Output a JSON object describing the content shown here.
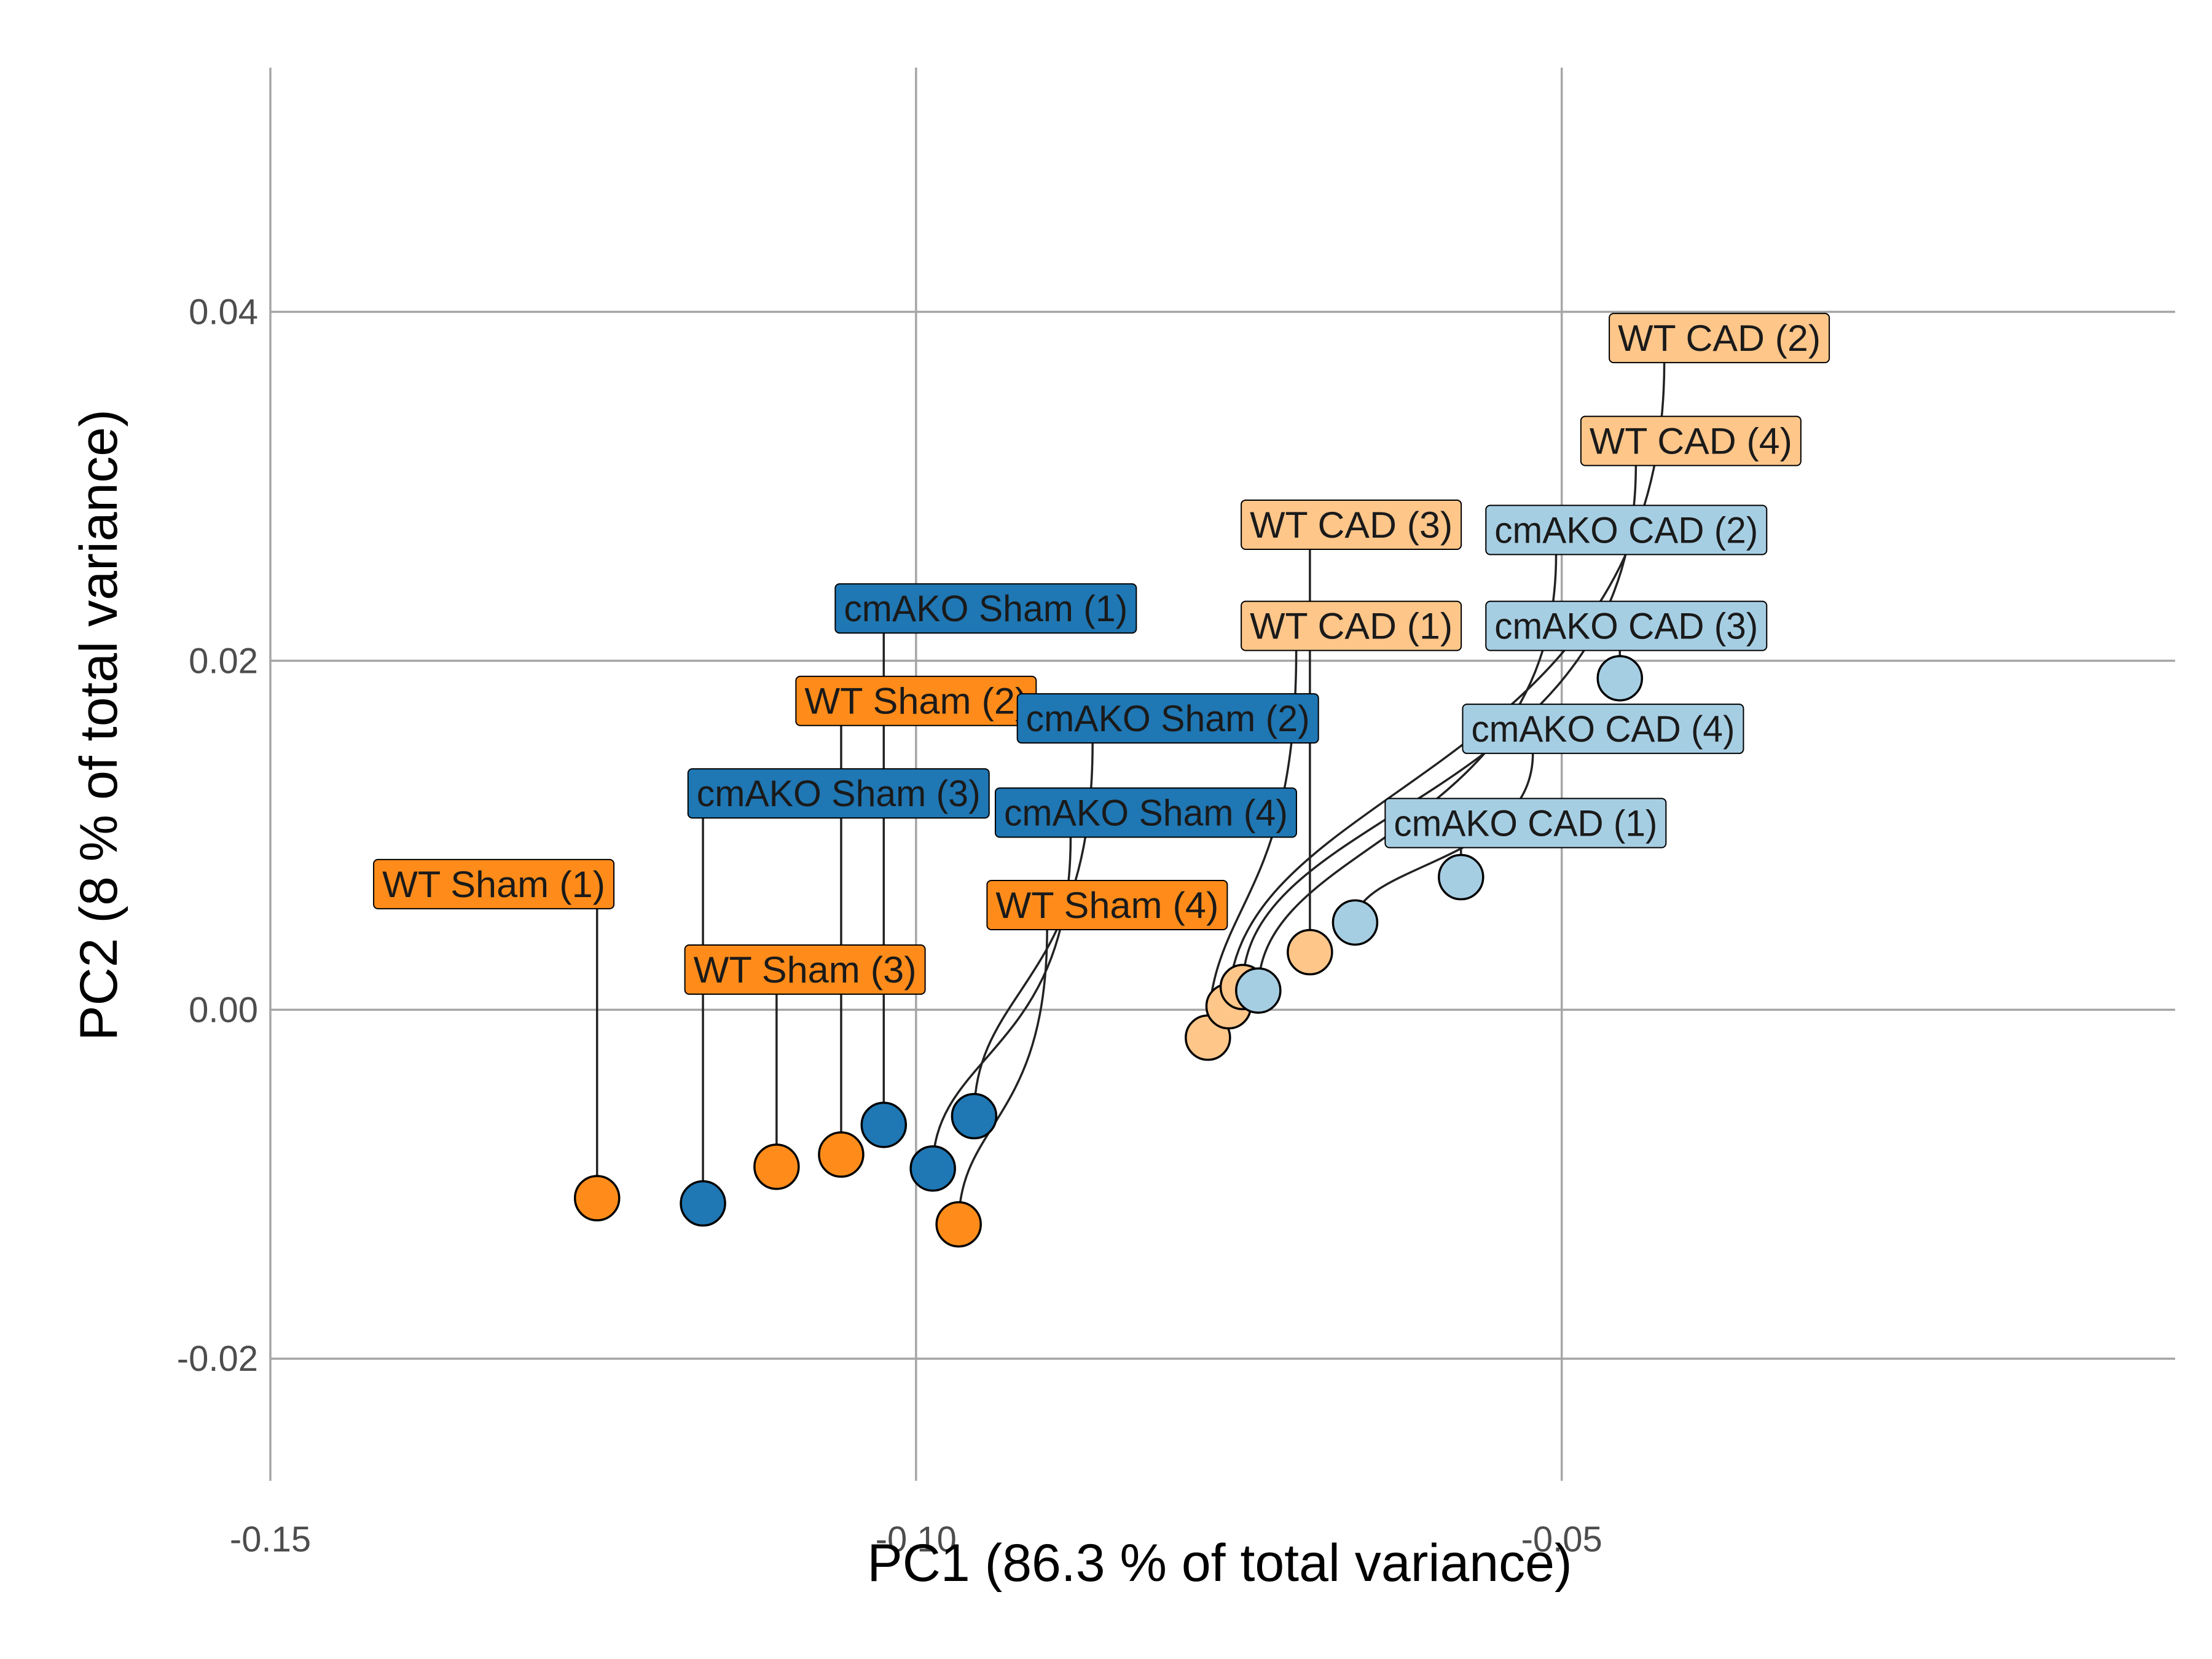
{
  "chart_data": {
    "type": "scatter",
    "xlabel": "PC1 (86.3 % of total variance)",
    "ylabel": "PC2 (8 % of total variance)",
    "xlim": [
      -0.15,
      -0.0025
    ],
    "ylim": [
      -0.027,
      0.054
    ],
    "x_ticks": [
      -0.15,
      -0.1,
      -0.05
    ],
    "x_tick_labels": [
      "-0.15",
      "-0.10",
      "-0.05"
    ],
    "y_ticks": [
      -0.02,
      0.0,
      0.02,
      0.04
    ],
    "y_tick_labels": [
      "-0.02",
      "0.00",
      "0.02",
      "0.04"
    ],
    "grid": true,
    "legend": "none",
    "colors": {
      "WT Sham": "#ff8c1a",
      "cmAKO Sham": "#1f77b4",
      "WT CAD": "#ffc68a",
      "cmAKO CAD": "#a6cee3"
    },
    "points": [
      {
        "label": "WT Sham (1)",
        "group": "WT Sham",
        "x": -0.1247,
        "y": -0.0108,
        "label_x": -0.1327,
        "label_y": 0.0072
      },
      {
        "label": "WT Sham (2)",
        "group": "WT Sham",
        "x": -0.1058,
        "y": -0.0083,
        "label_x": -0.1,
        "label_y": 0.0177
      },
      {
        "label": "WT Sham (3)",
        "group": "WT Sham",
        "x": -0.1108,
        "y": -0.009,
        "label_x": -0.1086,
        "label_y": 0.0023
      },
      {
        "label": "WT Sham (4)",
        "group": "WT Sham",
        "x": -0.0967,
        "y": -0.0123,
        "label_x": -0.0852,
        "label_y": 0.006
      },
      {
        "label": "cmAKO Sham (1)",
        "group": "cmAKO Sham",
        "x": -0.1025,
        "y": -0.0066,
        "label_x": -0.0946,
        "label_y": 0.023
      },
      {
        "label": "cmAKO Sham (2)",
        "group": "cmAKO Sham",
        "x": -0.0955,
        "y": -0.0061,
        "label_x": -0.0805,
        "label_y": 0.0167
      },
      {
        "label": "cmAKO Sham (3)",
        "group": "cmAKO Sham",
        "x": -0.1165,
        "y": -0.0111,
        "label_x": -0.106,
        "label_y": 0.0124
      },
      {
        "label": "cmAKO Sham (4)",
        "group": "cmAKO Sham",
        "x": -0.0987,
        "y": -0.0091,
        "label_x": -0.0822,
        "label_y": 0.0113
      },
      {
        "label": "WT CAD (1)",
        "group": "WT CAD",
        "x": -0.0774,
        "y": -0.0016,
        "label_x": -0.0663,
        "label_y": 0.022
      },
      {
        "label": "WT CAD (2)",
        "group": "WT CAD",
        "x": -0.0758,
        "y": 0.0002,
        "label_x": -0.0378,
        "label_y": 0.0385
      },
      {
        "label": "WT CAD (3)",
        "group": "WT CAD",
        "x": -0.0695,
        "y": 0.0033,
        "label_x": -0.0663,
        "label_y": 0.0278
      },
      {
        "label": "WT CAD (4)",
        "group": "WT CAD",
        "x": -0.0747,
        "y": 0.0013,
        "label_x": -0.04,
        "label_y": 0.0326
      },
      {
        "label": "cmAKO CAD (1)",
        "group": "cmAKO CAD",
        "x": -0.0578,
        "y": 0.0076,
        "label_x": -0.0528,
        "label_y": 0.0107
      },
      {
        "label": "cmAKO CAD (2)",
        "group": "cmAKO CAD",
        "x": -0.0735,
        "y": 0.0011,
        "label_x": -0.045,
        "label_y": 0.0275
      },
      {
        "label": "cmAKO CAD (3)",
        "group": "cmAKO CAD",
        "x": -0.0455,
        "y": 0.019,
        "label_x": -0.045,
        "label_y": 0.022
      },
      {
        "label": "cmAKO CAD (4)",
        "group": "cmAKO CAD",
        "x": -0.066,
        "y": 0.005,
        "label_x": -0.0468,
        "label_y": 0.0161
      }
    ]
  }
}
